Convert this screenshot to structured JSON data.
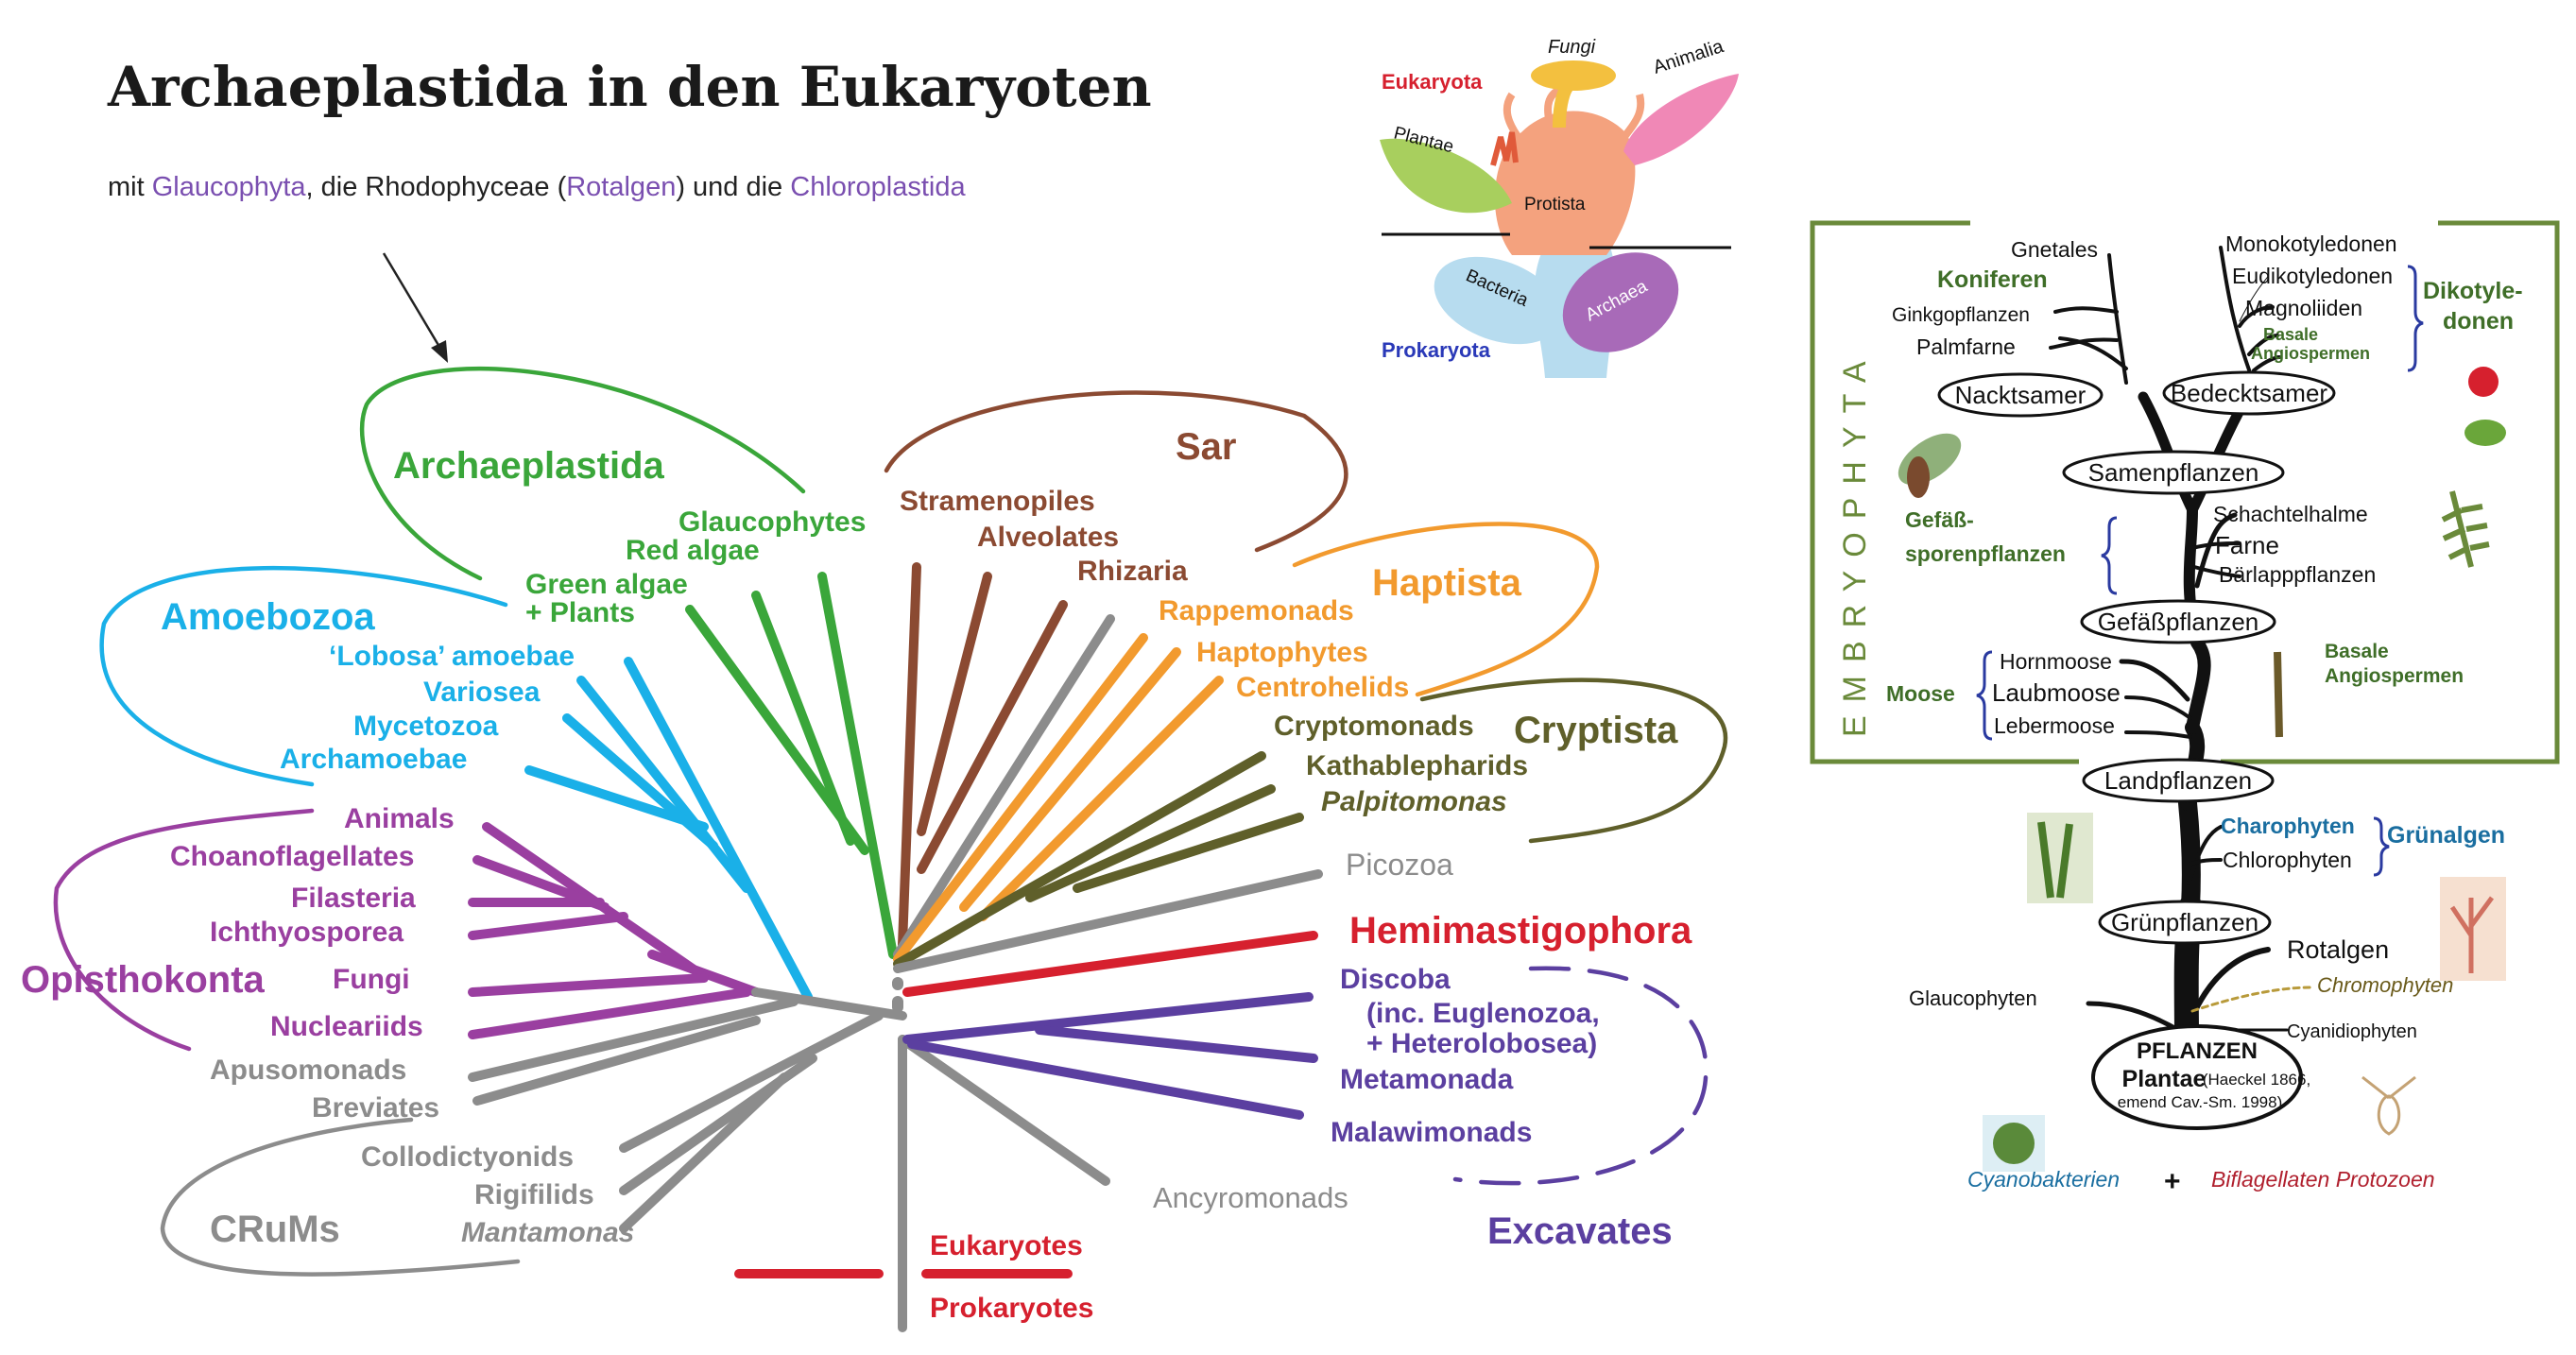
{
  "title": "Archaeplastida in den Eukaryoten",
  "subtitle": {
    "prefix": "mit ",
    "glaucophyta": "Glaucophyta",
    "mid1": ", die Rhodophyceae (",
    "rotalgen": "Rotalgen",
    "mid2": ") und die ",
    "chloroplastida": "Chloroplastida"
  },
  "colors": {
    "archaeplastida": "#3aa63a",
    "sar": "#8b4a32",
    "haptista": "#f29a2e",
    "cryptista": "#5f5f2a",
    "amoebozoa": "#1ab0e8",
    "opisthokonta": "#9a3fa0",
    "grey": "#8c8c8c",
    "hemimastigophora": "#d6202e",
    "excavates": "#5b3fa0",
    "red": "#d6202e"
  },
  "tree": {
    "supergroups": {
      "archaeplastida": "Archaeplastida",
      "sar": "Sar",
      "haptista": "Haptista",
      "cryptista": "Cryptista",
      "amoebozoa": "Amoebozoa",
      "opisthokonta": "Opisthokonta",
      "crums": "CRuMs",
      "excavates": "Excavates",
      "hemimastigophora": "Hemimastigophora"
    },
    "taxa": {
      "glaucophytes": "Glaucophytes",
      "red_algae": "Red algae",
      "green_algae_1": "Green algae",
      "green_algae_2": "+ Plants",
      "stramenopiles": "Stramenopiles",
      "alveolates": "Alveolates",
      "rhizaria": "Rhizaria",
      "rappemonads": "Rappemonads",
      "haptophytes": "Haptophytes",
      "centrohelids": "Centrohelids",
      "cryptomonads": "Cryptomonads",
      "kathablepharids": "Kathablepharids",
      "palpitomonas": "Palpitomonas",
      "picozoa": "Picozoa",
      "lobosa": "‘Lobosa’ amoebae",
      "variosea": "Variosea",
      "mycetozoa": "Mycetozoa",
      "archamoebae": "Archamoebae",
      "animals": "Animals",
      "choanoflagellates": "Choanoflagellates",
      "filasteria": "Filasteria",
      "ichthyosporea": "Ichthyosporea",
      "fungi": "Fungi",
      "nucleariids": "Nucleariids",
      "apusomonads": "Apusomonads",
      "breviates": "Breviates",
      "collodictyonids": "Collodictyonids",
      "rigifilids": "Rigifilids",
      "mantamonas": "Mantamonas",
      "discoba_1": "Discoba",
      "discoba_2": "(inc. Euglenozoa,",
      "discoba_3": "+ Heterolobosea)",
      "metamonada": "Metamonada",
      "malawimonads": "Malawimonads",
      "ancyromonads": "Ancyromonads"
    },
    "legend": {
      "eukaryotes": "Eukaryotes",
      "prokaryotes": "Prokaryotes"
    }
  },
  "inset": {
    "eukaryota": "Eukaryota",
    "prokaryota": "Prokaryota",
    "fungi": "Fungi",
    "animalia": "Animalia",
    "plantae": "Plantae",
    "protista": "Protista",
    "bacteria": "Bacteria",
    "archaea": "Archaea"
  },
  "plant_tree": {
    "embryophyta": "EMBRYOPHYTA",
    "nodes": {
      "nacktsamer": "Nacktsamer",
      "bedecktsamer": "Bedecktsamer",
      "samenpflanzen": "Samenpflanzen",
      "gefaesspflanzen": "Gefäßpflanzen",
      "landpflanzen": "Landpflanzen",
      "gruenpflanzen": "Grünpflanzen",
      "pflanzen": "PFLANZEN",
      "plantae": "Plantae",
      "plantae_note": "(Haeckel 1866,",
      "plantae_note2": "emend Cav.-Sm. 1998)"
    },
    "leaves": {
      "gnetales": "Gnetales",
      "koniferen": "Koniferen",
      "ginkgo": "Ginkgopflanzen",
      "palmfarne": "Palmfarne",
      "monokotyledonen": "Monokotyledonen",
      "eudikotyledonen": "Eudikotyledonen",
      "magnoliiden": "Magnoliiden",
      "basale_1": "Basale",
      "basale_2": "Angiospermen",
      "dikotyledonen_1": "Dikotyle-",
      "dikotyledonen_2": "donen",
      "schachtelhalme": "Schachtelhalme",
      "farne": "Farne",
      "baerlapp": "Bärlapppflanzen",
      "gefaess_1": "Gefäß-",
      "gefaess_2": "sporenpflanzen",
      "basale_b1": "Basale",
      "basale_b2": "Angiospermen",
      "hornmoose": "Hornmoose",
      "laubmoose": "Laubmoose",
      "lebermoose": "Lebermoose",
      "moose": "Moose",
      "charophyten": "Charophyten",
      "chlorophyten": "Chlorophyten",
      "gruenalgen": "Grünalgen",
      "rotalgen": "Rotalgen",
      "chromophyten": "Chromophyten",
      "glaucophyten": "Glaucophyten",
      "cyanidiophyten": "Cyanidiophyten",
      "cyanobakterien": "Cyanobakterien",
      "plus": "+",
      "biflagellaten": "Biflagellaten Protozoen"
    }
  }
}
